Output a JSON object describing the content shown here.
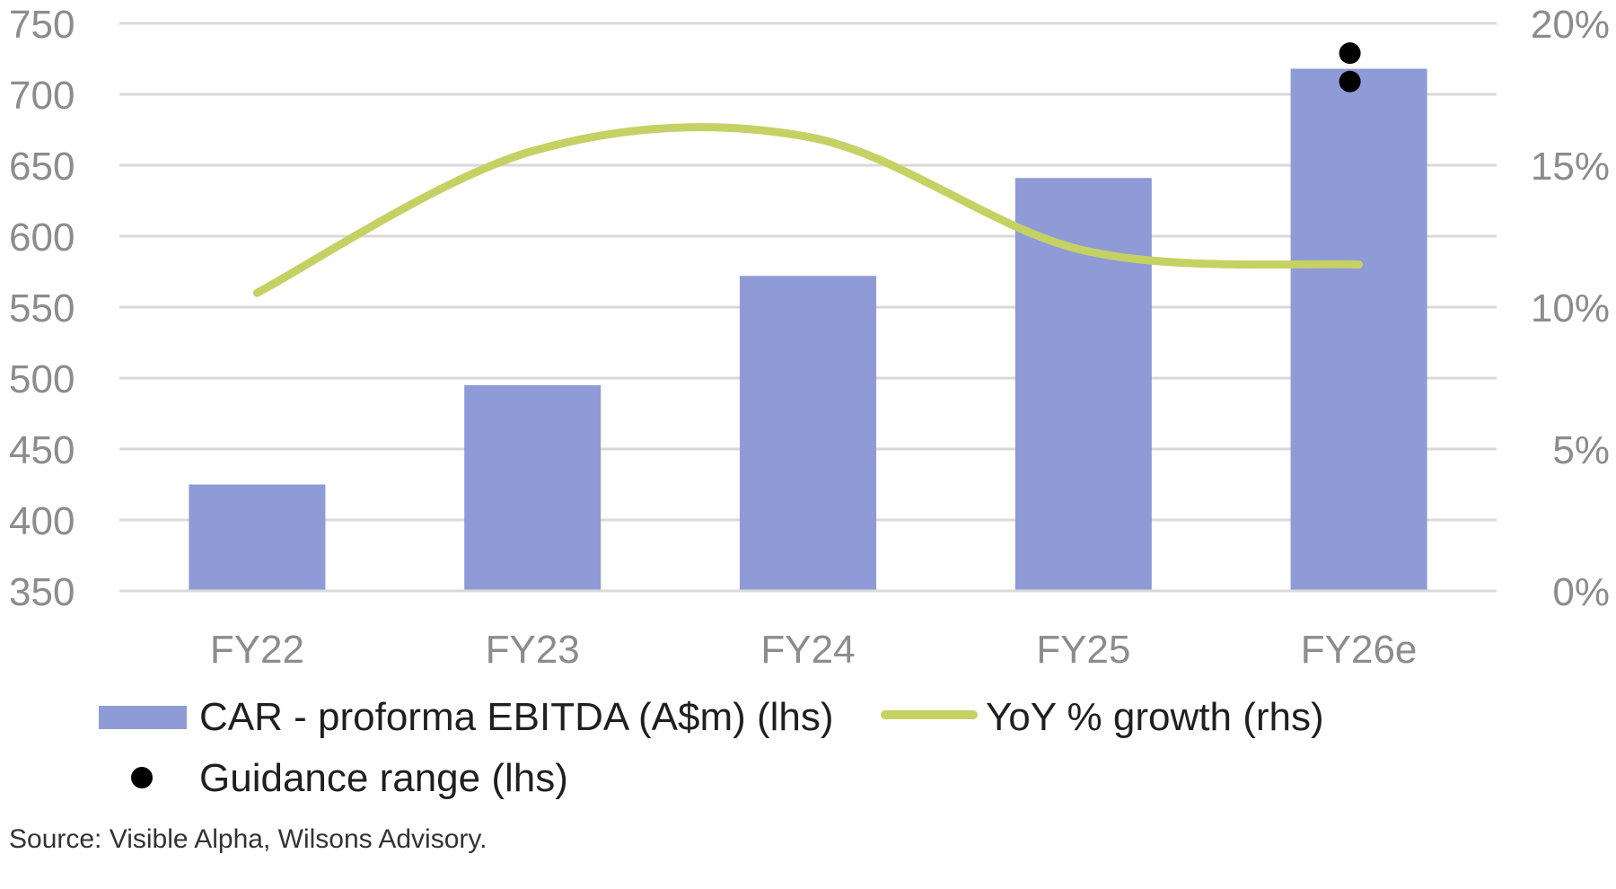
{
  "chart_data": {
    "type": "bar",
    "title": "",
    "categories": [
      "FY22",
      "FY23",
      "FY24",
      "FY25",
      "FY26e"
    ],
    "series": [
      {
        "name": "CAR - proforma EBITDA (A$m) (lhs)",
        "type": "bar",
        "axis": "left",
        "color": "#8e9bd6",
        "values": [
          425,
          495,
          572,
          641,
          718
        ]
      },
      {
        "name": "YoY % growth (rhs)",
        "type": "line",
        "axis": "right",
        "color": "#c5d163",
        "values": [
          10.5,
          15.5,
          16.0,
          12.0,
          11.5
        ]
      },
      {
        "name": "Guidance range (lhs)",
        "type": "scatter",
        "axis": "left",
        "color": "#000000",
        "points": [
          [
            "FY26e",
            709
          ],
          [
            "FY26e",
            729
          ]
        ]
      }
    ],
    "y_left": {
      "min": 350,
      "max": 750,
      "ticks": [
        "350",
        "400",
        "450",
        "500",
        "550",
        "600",
        "650",
        "700",
        "750"
      ]
    },
    "y_right": {
      "min": 0,
      "max": 20,
      "ticks": [
        "0%",
        "5%",
        "10%",
        "15%",
        "20%"
      ]
    },
    "grid": true,
    "legend": {
      "position": "bottom",
      "entries": [
        "CAR - proforma EBITDA (A$m) (lhs)",
        "YoY % growth (rhs)",
        "Guidance range (lhs)"
      ]
    }
  },
  "source": "Source: Visible Alpha, Wilsons Advisory."
}
